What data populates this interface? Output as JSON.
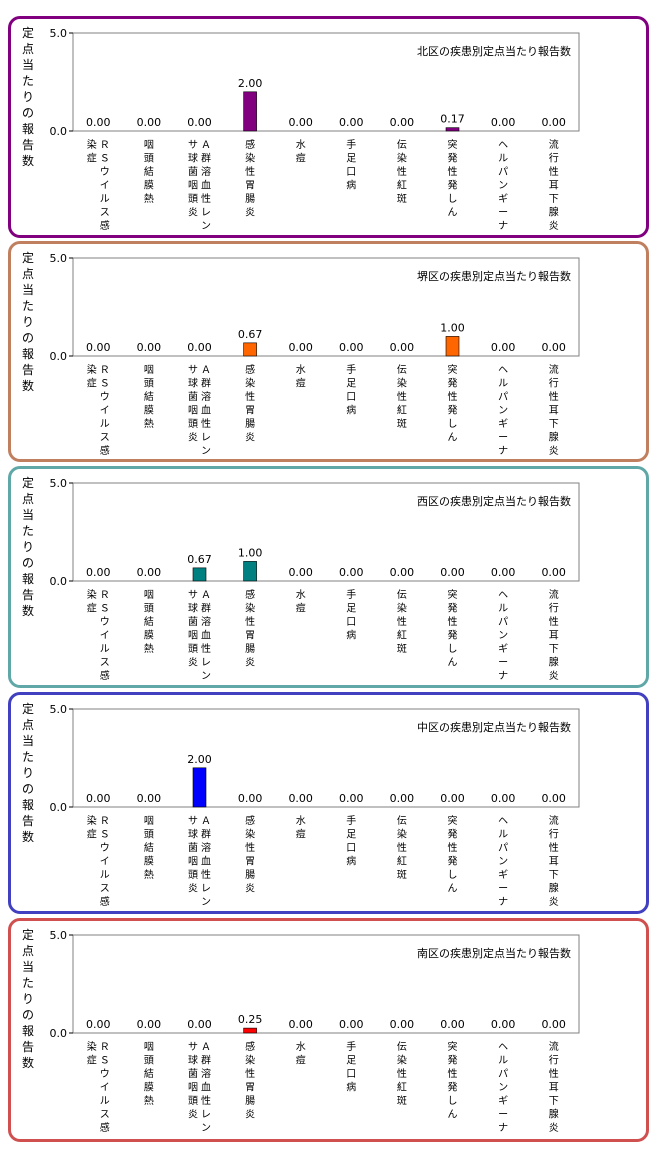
{
  "chart_data": [
    {
      "type": "bar",
      "title": "北区の疾患別定点当たり報告数",
      "ylabel": "定点当たりの報告数",
      "ylim": [
        0,
        5.0
      ],
      "ytick_labels": [
        "0.0",
        "5.0"
      ],
      "color": "#800080",
      "border_color": "#800080",
      "categories": [
        "ＲＳウイルス感染症",
        "咽頭結膜熱",
        "Ａ群溶血性レンサ球菌咽頭炎",
        "感染性胃腸炎",
        "水痘",
        "手足口病",
        "伝染性紅斑",
        "突発性発しん",
        "ヘルパンギーナ",
        "流行性耳下腺炎"
      ],
      "values": [
        0.0,
        0.0,
        0.0,
        2.0,
        0.0,
        0.0,
        0.0,
        0.17,
        0.0,
        0.0
      ],
      "value_labels": [
        "0.00",
        "0.00",
        "0.00",
        "2.00",
        "0.00",
        "0.00",
        "0.00",
        "0.17",
        "0.00",
        "0.00"
      ]
    },
    {
      "type": "bar",
      "title": "堺区の疾患別定点当たり報告数",
      "ylabel": "定点当たりの報告数",
      "ylim": [
        0,
        5.0
      ],
      "ytick_labels": [
        "0.0",
        "5.0"
      ],
      "color": "#ff6600",
      "border_color": "#c08060",
      "categories": [
        "ＲＳウイルス感染症",
        "咽頭結膜熱",
        "Ａ群溶血性レンサ球菌咽頭炎",
        "感染性胃腸炎",
        "水痘",
        "手足口病",
        "伝染性紅斑",
        "突発性発しん",
        "ヘルパンギーナ",
        "流行性耳下腺炎"
      ],
      "values": [
        0.0,
        0.0,
        0.0,
        0.67,
        0.0,
        0.0,
        0.0,
        1.0,
        0.0,
        0.0
      ],
      "value_labels": [
        "0.00",
        "0.00",
        "0.00",
        "0.67",
        "0.00",
        "0.00",
        "0.00",
        "1.00",
        "0.00",
        "0.00"
      ]
    },
    {
      "type": "bar",
      "title": "西区の疾患別定点当たり報告数",
      "ylabel": "定点当たりの報告数",
      "ylim": [
        0,
        5.0
      ],
      "ytick_labels": [
        "0.0",
        "5.0"
      ],
      "color": "#008080",
      "border_color": "#60a8a8",
      "categories": [
        "ＲＳウイルス感染症",
        "咽頭結膜熱",
        "Ａ群溶血性レンサ球菌咽頭炎",
        "感染性胃腸炎",
        "水痘",
        "手足口病",
        "伝染性紅斑",
        "突発性発しん",
        "ヘルパンギーナ",
        "流行性耳下腺炎"
      ],
      "values": [
        0.0,
        0.0,
        0.67,
        1.0,
        0.0,
        0.0,
        0.0,
        0.0,
        0.0,
        0.0
      ],
      "value_labels": [
        "0.00",
        "0.00",
        "0.67",
        "1.00",
        "0.00",
        "0.00",
        "0.00",
        "0.00",
        "0.00",
        "0.00"
      ]
    },
    {
      "type": "bar",
      "title": "中区の疾患別定点当たり報告数",
      "ylabel": "定点当たりの報告数",
      "ylim": [
        0,
        5.0
      ],
      "ytick_labels": [
        "0.0",
        "5.0"
      ],
      "color": "#0000ff",
      "border_color": "#4040c0",
      "categories": [
        "ＲＳウイルス感染症",
        "咽頭結膜熱",
        "Ａ群溶血性レンサ球菌咽頭炎",
        "感染性胃腸炎",
        "水痘",
        "手足口病",
        "伝染性紅斑",
        "突発性発しん",
        "ヘルパンギーナ",
        "流行性耳下腺炎"
      ],
      "values": [
        0.0,
        0.0,
        2.0,
        0.0,
        0.0,
        0.0,
        0.0,
        0.0,
        0.0,
        0.0
      ],
      "value_labels": [
        "0.00",
        "0.00",
        "2.00",
        "0.00",
        "0.00",
        "0.00",
        "0.00",
        "0.00",
        "0.00",
        "0.00"
      ]
    },
    {
      "type": "bar",
      "title": "南区の疾患別定点当たり報告数",
      "ylabel": "定点当たりの報告数",
      "ylim": [
        0,
        5.0
      ],
      "ytick_labels": [
        "0.0",
        "5.0"
      ],
      "color": "#ff0000",
      "border_color": "#d05050",
      "categories": [
        "ＲＳウイルス感染症",
        "咽頭結膜熱",
        "Ａ群溶血性レンサ球菌咽頭炎",
        "感染性胃腸炎",
        "水痘",
        "手足口病",
        "伝染性紅斑",
        "突発性発しん",
        "ヘルパンギーナ",
        "流行性耳下腺炎"
      ],
      "values": [
        0.0,
        0.0,
        0.0,
        0.25,
        0.0,
        0.0,
        0.0,
        0.0,
        0.0,
        0.0
      ],
      "value_labels": [
        "0.00",
        "0.00",
        "0.00",
        "0.25",
        "0.00",
        "0.00",
        "0.00",
        "0.00",
        "0.00",
        "0.00"
      ]
    }
  ]
}
